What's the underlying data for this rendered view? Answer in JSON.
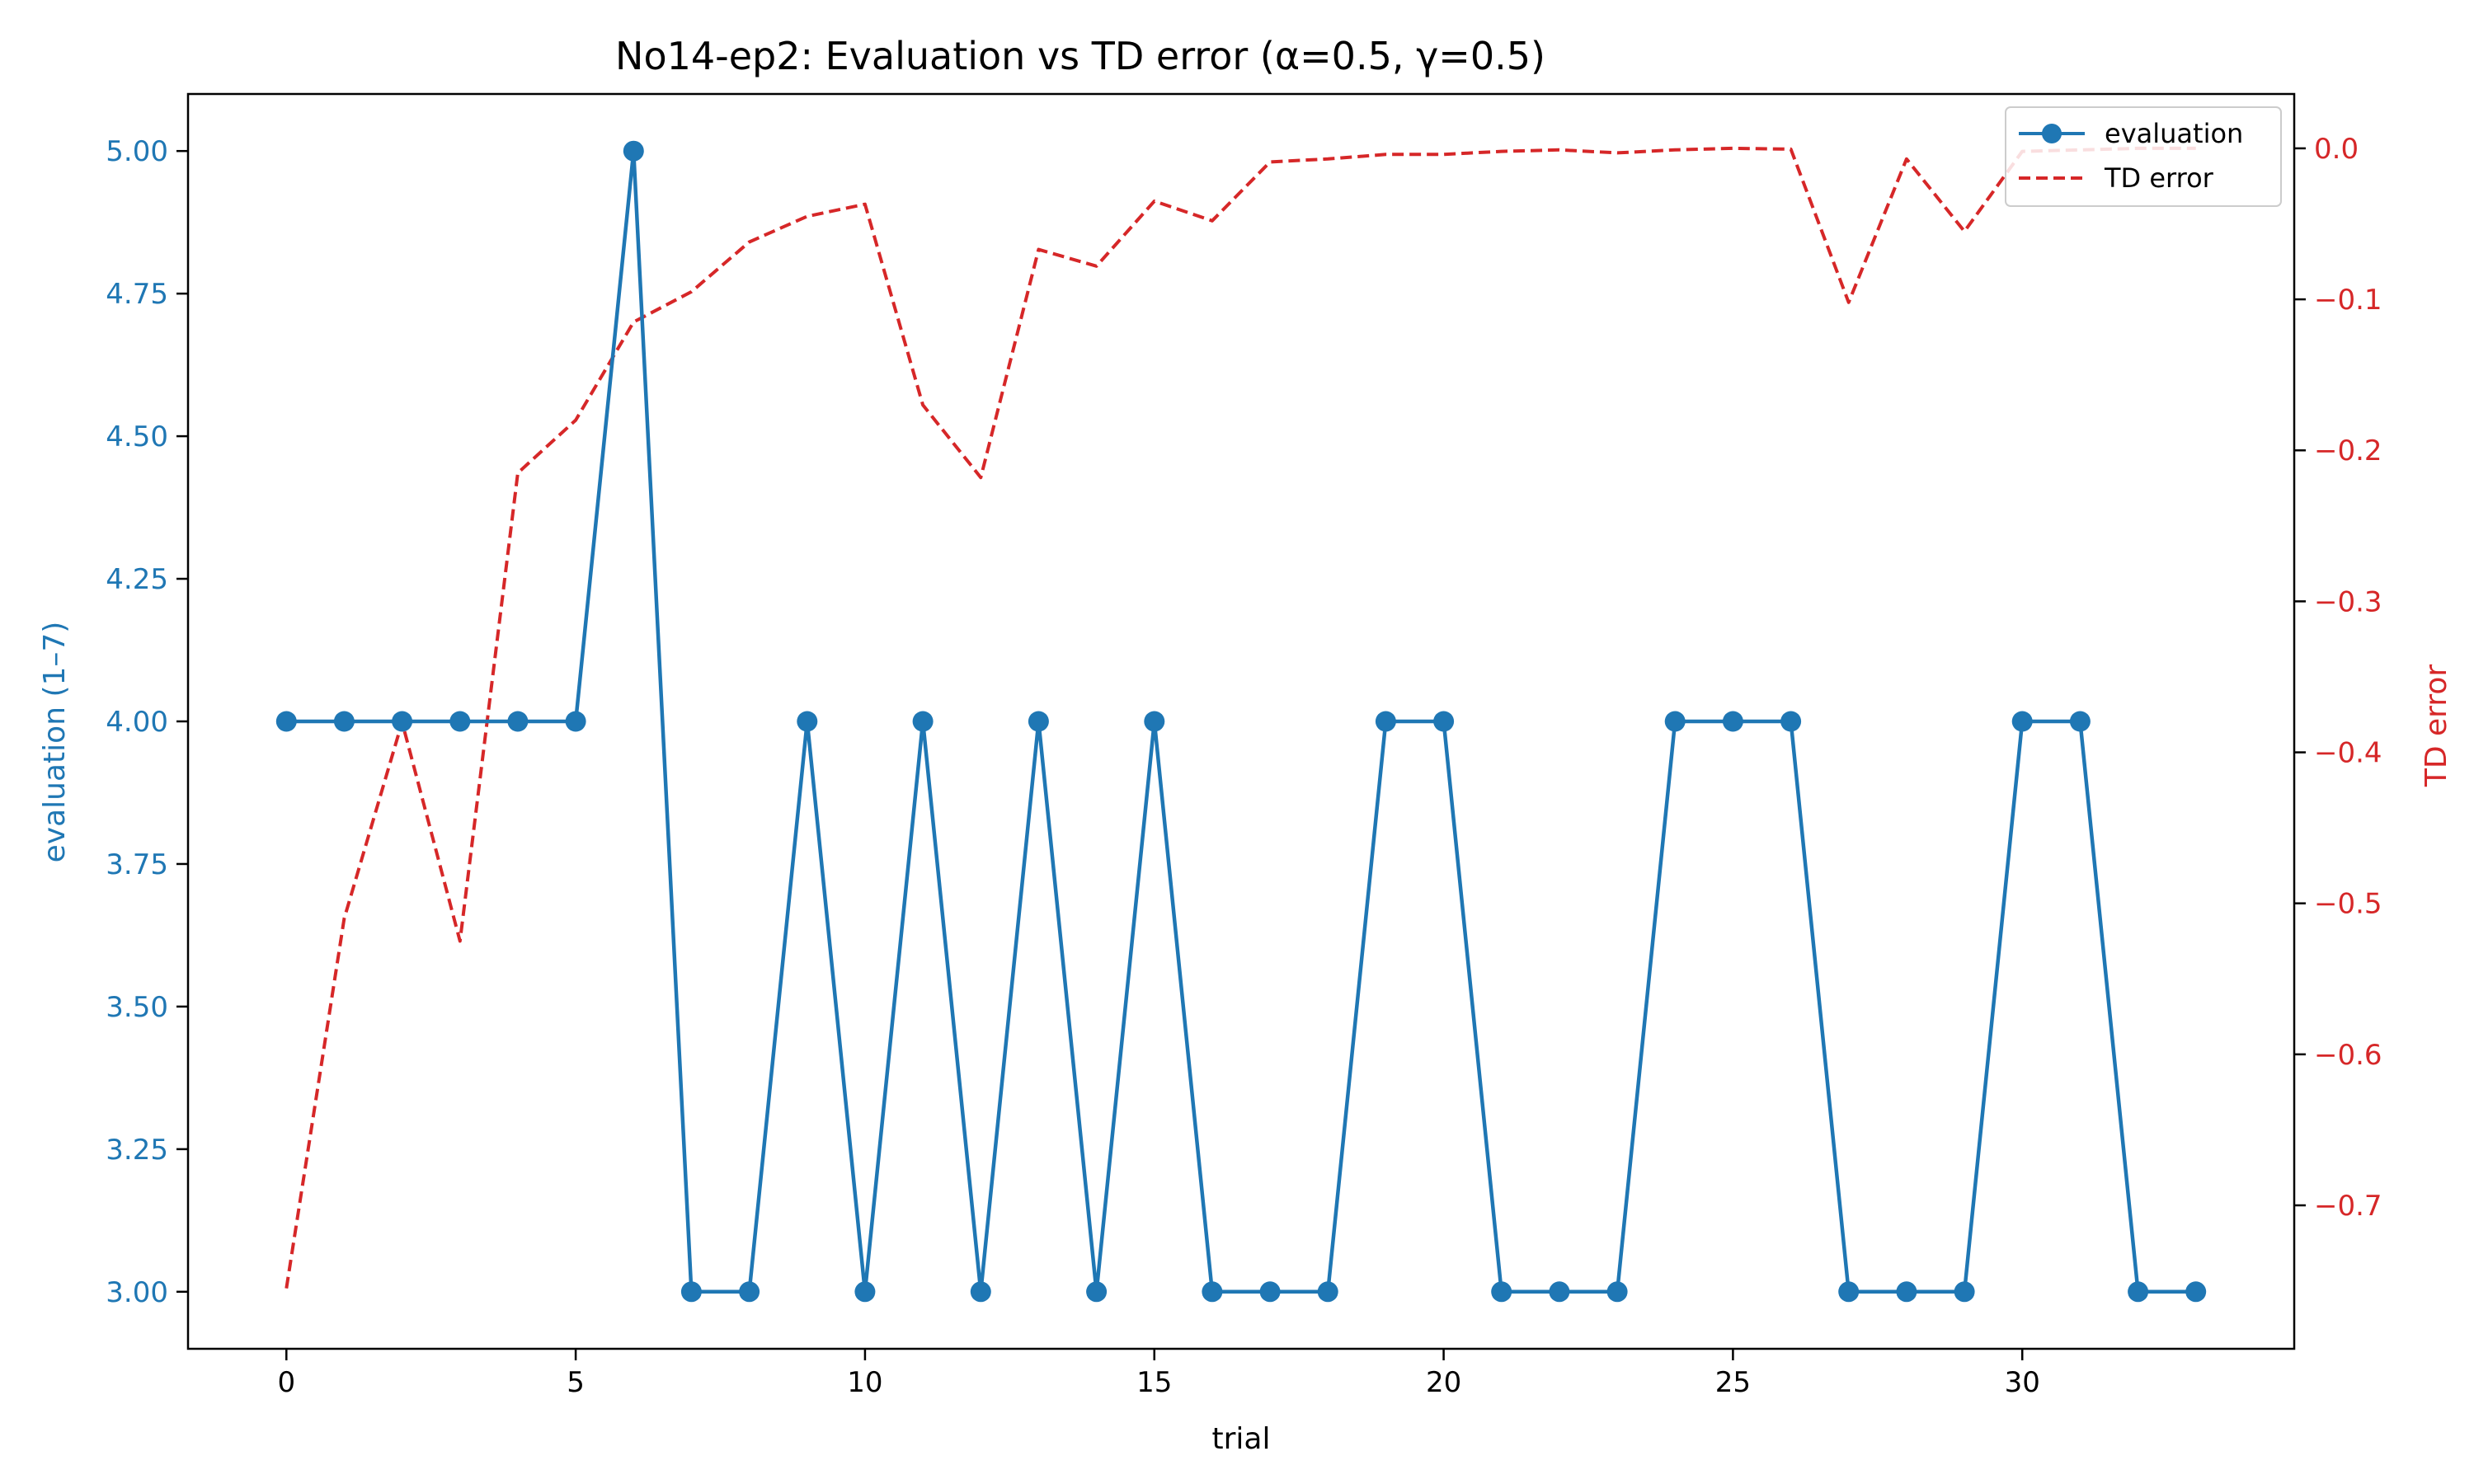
{
  "chart_data": {
    "type": "line",
    "title": "No14-ep2: Evaluation vs TD error (α=0.5, γ=0.5)",
    "xlabel": "trial",
    "ylabel_left": "evaluation (1–7)",
    "ylabel_right": "TD error",
    "xlim": [
      -1.7,
      34.7
    ],
    "ylim_left": [
      2.9,
      5.1
    ],
    "ylim_right": [
      -0.795,
      0.036
    ],
    "x_ticks": [
      0,
      5,
      10,
      15,
      20,
      25,
      30
    ],
    "y_left_ticks": [
      3.0,
      3.25,
      3.5,
      3.75,
      4.0,
      4.25,
      4.5,
      4.75,
      5.0
    ],
    "y_left_tick_labels": [
      "3.00",
      "3.25",
      "3.50",
      "3.75",
      "4.00",
      "4.25",
      "4.50",
      "4.75",
      "5.00"
    ],
    "y_right_ticks": [
      -0.7,
      -0.6,
      -0.5,
      -0.4,
      -0.3,
      -0.2,
      -0.1,
      0.0
    ],
    "y_right_tick_labels": [
      "−0.7",
      "−0.6",
      "−0.5",
      "−0.4",
      "−0.3",
      "−0.2",
      "−0.1",
      "0.0"
    ],
    "legend_position": "top-right",
    "grid": false,
    "x": [
      0,
      1,
      2,
      3,
      4,
      5,
      6,
      7,
      8,
      9,
      10,
      11,
      12,
      13,
      14,
      15,
      16,
      17,
      18,
      19,
      20,
      21,
      22,
      23,
      24,
      25,
      26,
      27,
      28,
      29,
      30,
      31,
      32,
      33
    ],
    "series": [
      {
        "name": "evaluation",
        "axis": "left",
        "color": "#1f77b4",
        "style": "solid-marker",
        "values": [
          4,
          4,
          4,
          4,
          4,
          4,
          5,
          3,
          3,
          4,
          3,
          4,
          3,
          4,
          3,
          4,
          3,
          3,
          3,
          4,
          4,
          3,
          3,
          3,
          4,
          4,
          4,
          3,
          3,
          3,
          4,
          4,
          3,
          3
        ]
      },
      {
        "name": "TD error",
        "axis": "right",
        "color": "#d62728",
        "style": "dashed",
        "values": [
          -0.755,
          -0.51,
          -0.38,
          -0.525,
          -0.215,
          -0.18,
          -0.115,
          -0.095,
          -0.062,
          -0.045,
          -0.037,
          -0.17,
          -0.218,
          -0.067,
          -0.078,
          -0.035,
          -0.048,
          -0.009,
          -0.007,
          -0.004,
          -0.004,
          -0.002,
          -0.001,
          -0.003,
          -0.001,
          0.0,
          -0.0005,
          -0.102,
          -0.007,
          -0.055,
          -0.002,
          -0.001,
          0.0,
          0.0
        ]
      }
    ]
  }
}
